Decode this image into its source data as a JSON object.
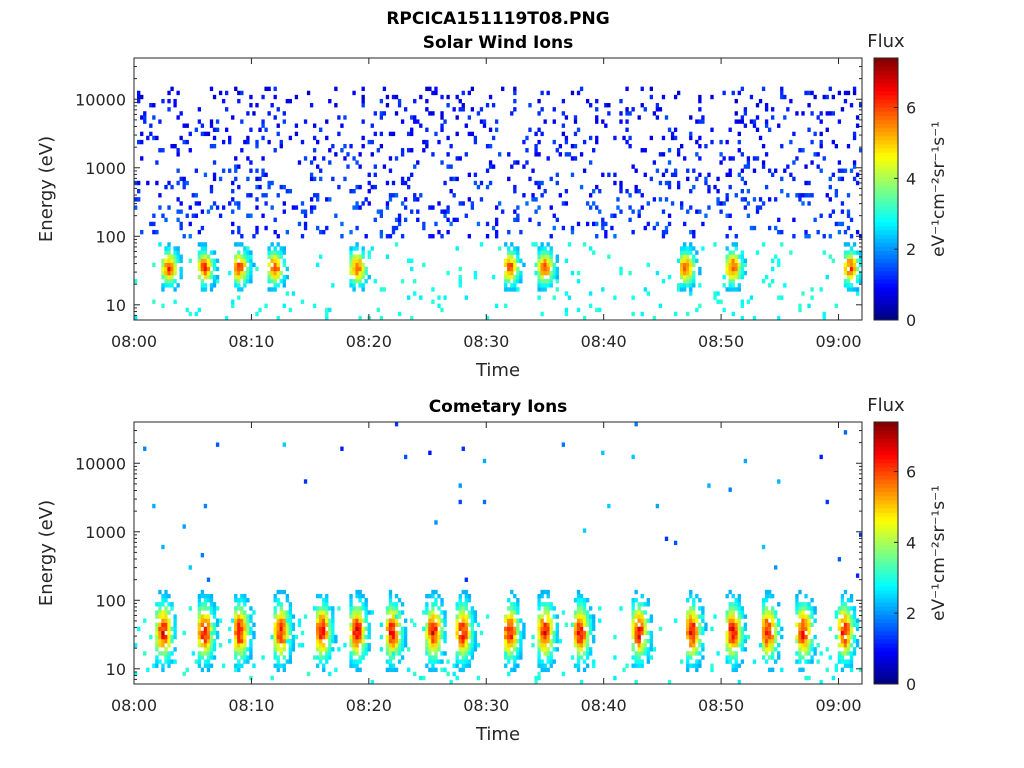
{
  "figure_title": "RPCICA151119T08.PNG",
  "chart_data": [
    {
      "type": "heatmap",
      "title": "Solar Wind Ions",
      "xlabel": "Time",
      "ylabel": "Energy (eV)",
      "xticks": [
        "08:00",
        "08:10",
        "08:20",
        "08:30",
        "08:40",
        "08:50",
        "09:00"
      ],
      "yticks": [
        "10",
        "100",
        "1000",
        "10000"
      ],
      "ylog": true,
      "ylim": [
        6,
        40000
      ],
      "xlim_minutes": [
        0,
        62
      ],
      "grid": false,
      "colorbar": {
        "label": "Flux",
        "units": "eV⁻¹cm⁻²sr⁻¹s⁻¹",
        "ticks": [
          "0",
          "2",
          "4",
          "6"
        ],
        "range": [
          0,
          7.4
        ],
        "colormap": "jet"
      },
      "description_values": {
        "peak_energy_eV": 35,
        "bursts_minutes": [
          3,
          6,
          9,
          12,
          19,
          32,
          35,
          47,
          51,
          61
        ],
        "background_energy_range_eV": [
          100,
          15000
        ],
        "background_flux": 1.5,
        "peak_flux": 6.5
      }
    },
    {
      "type": "heatmap",
      "title": "Cometary Ions",
      "xlabel": "Time",
      "ylabel": "Energy (eV)",
      "xticks": [
        "08:00",
        "08:10",
        "08:20",
        "08:30",
        "08:40",
        "08:50",
        "09:00"
      ],
      "yticks": [
        "10",
        "100",
        "1000",
        "10000"
      ],
      "ylog": true,
      "ylim": [
        6,
        40000
      ],
      "xlim_minutes": [
        0,
        62
      ],
      "grid": false,
      "colorbar": {
        "label": "Flux",
        "units": "eV⁻¹cm⁻²sr⁻¹s⁻¹",
        "ticks": [
          "0",
          "2",
          "4",
          "6"
        ],
        "range": [
          0,
          7.4
        ],
        "colormap": "jet"
      },
      "description_values": {
        "peak_energy_eV": 35,
        "bursts_minutes": [
          2.5,
          6,
          9,
          12.5,
          16,
          19,
          22,
          25.5,
          28,
          32,
          35,
          38,
          43,
          47.5,
          51,
          54,
          57,
          60.5
        ],
        "peak_flux": 7
      }
    }
  ]
}
